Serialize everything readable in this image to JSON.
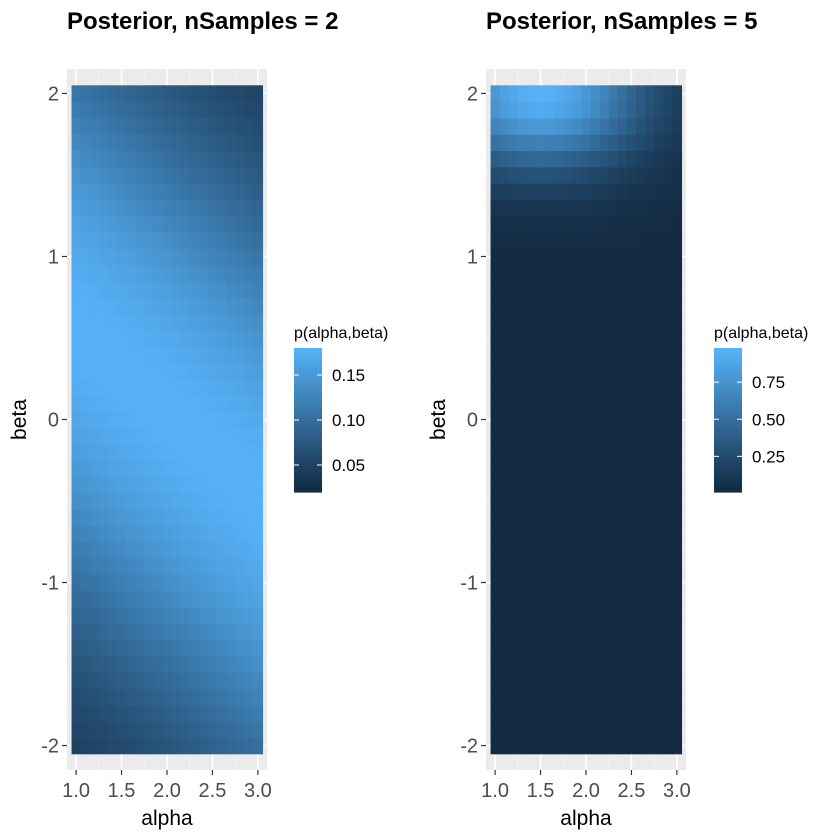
{
  "chart_data": [
    {
      "type": "heatmap",
      "title": "Posterior, nSamples = 2",
      "xlabel": "alpha",
      "ylabel": "beta",
      "x_ticks": [
        "1.0",
        "1.5",
        "2.0",
        "2.5",
        "3.0"
      ],
      "y_ticks": [
        "-2",
        "-1",
        "0",
        "1",
        "2"
      ],
      "xlim": [
        0.9,
        3.1
      ],
      "ylim": [
        -2.15,
        2.15
      ],
      "grid": {
        "x_start": 1.0,
        "x_end": 3.0,
        "y_start": -2.0,
        "y_end": 2.0,
        "step": 0.1
      },
      "legend": {
        "title": "p(alpha,beta)",
        "labels": [
          "0.15",
          "0.10",
          "0.05"
        ],
        "label_values": [
          0.15,
          0.1,
          0.05
        ],
        "range": [
          0.02,
          0.18
        ],
        "position": "right"
      },
      "model": {
        "kind": "ridge",
        "min": 0.02,
        "max": 0.18,
        "peak_beta_at_alpha1": 0.55,
        "peak_beta_slope": 0.5,
        "sigma": 1.35
      },
      "low_color": "#132B43",
      "high_color": "#56B1F7"
    },
    {
      "type": "heatmap",
      "title": "Posterior, nSamples = 5",
      "xlabel": "alpha",
      "ylabel": "beta",
      "x_ticks": [
        "1.0",
        "1.5",
        "2.0",
        "2.5",
        "3.0"
      ],
      "y_ticks": [
        "-2",
        "-1",
        "0",
        "1",
        "2"
      ],
      "xlim": [
        0.9,
        3.1
      ],
      "ylim": [
        -2.15,
        2.15
      ],
      "grid": {
        "x_start": 1.0,
        "x_end": 3.0,
        "y_start": -2.0,
        "y_end": 2.0,
        "step": 0.1
      },
      "legend": {
        "title": "p(alpha,beta)",
        "labels": [
          "0.75",
          "0.50",
          "0.25"
        ],
        "label_values": [
          0.75,
          0.5,
          0.25
        ],
        "range": [
          0.01,
          0.98
        ],
        "position": "right"
      },
      "model": {
        "kind": "corner",
        "min": 0.01,
        "max": 0.98,
        "peak_alpha": 1.5,
        "peak_beta": 2.0,
        "alpha_scale": 1.1,
        "beta_scale": 0.45
      },
      "low_color": "#132B43",
      "high_color": "#56B1F7"
    }
  ]
}
